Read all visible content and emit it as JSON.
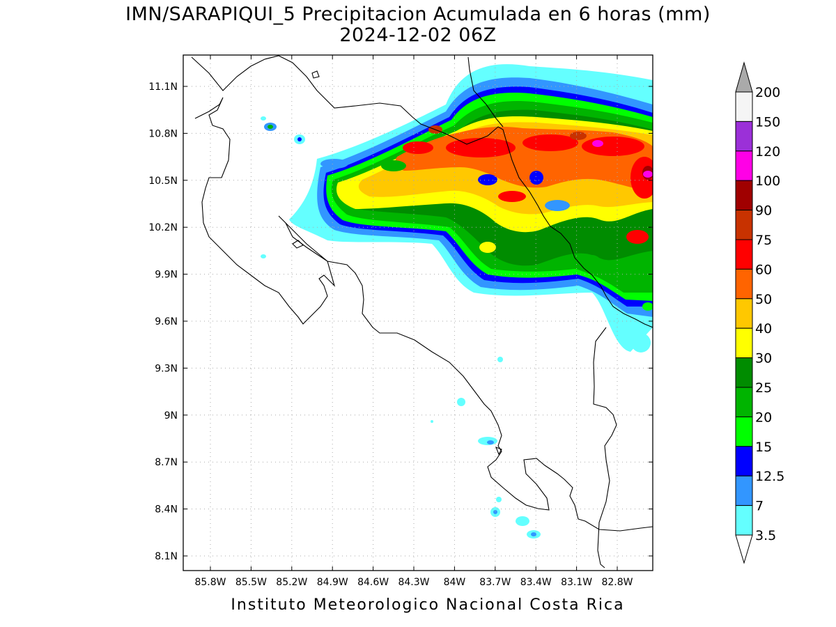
{
  "header": {
    "title_line1": "IMN/SARAPIQUI_5 Precipitacion Acumulada en 6 horas (mm)",
    "title_line2": "2024-12-02 06Z"
  },
  "footer": {
    "credit": "Instituto Meteorologico Nacional Costa Rica"
  },
  "axes": {
    "lon_labels": [
      "85.8W",
      "85.5W",
      "85.2W",
      "84.9W",
      "84.6W",
      "84.3W",
      "84W",
      "83.7W",
      "83.4W",
      "83.1W",
      "82.8W"
    ],
    "lat_labels": [
      "11.1N",
      "10.8N",
      "10.5N",
      "10.2N",
      "9.9N",
      "9.6N",
      "9.3N",
      "9N",
      "8.7N",
      "8.4N",
      "8.1N"
    ]
  },
  "colorbar": {
    "top_label": "200",
    "levels": [
      {
        "label": "150",
        "color": "#f5f5f5"
      },
      {
        "label": "120",
        "color": "#9b30d8"
      },
      {
        "label": "100",
        "color": "#ff00e6"
      },
      {
        "label": "90",
        "color": "#a00000"
      },
      {
        "label": "75",
        "color": "#c83200"
      },
      {
        "label": "60",
        "color": "#ff0000"
      },
      {
        "label": "50",
        "color": "#ff6400"
      },
      {
        "label": "40",
        "color": "#ffc800"
      },
      {
        "label": "30",
        "color": "#ffff00"
      },
      {
        "label": "25",
        "color": "#008c00"
      },
      {
        "label": "20",
        "color": "#00b400"
      },
      {
        "label": "15",
        "color": "#00ff00"
      },
      {
        "label": "12.5",
        "color": "#0000ff"
      },
      {
        "label": "7",
        "color": "#3296ff"
      },
      {
        "label": "3.5",
        "color": "#64ffff"
      }
    ],
    "top_cap_color": "#aaaaaa",
    "bottom_cap_color": "#ffffff"
  }
}
